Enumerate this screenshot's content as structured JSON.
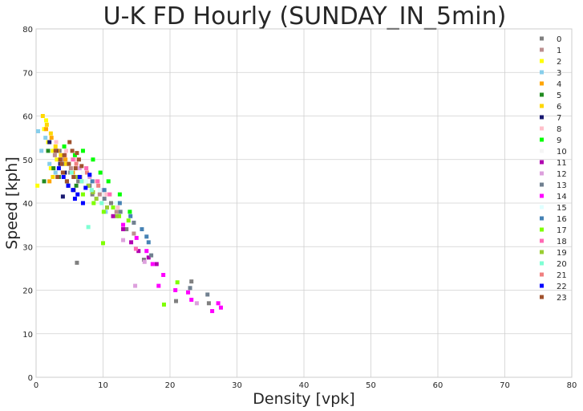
{
  "chart_data": {
    "type": "scatter",
    "title": "U-K FD Hourly (SUNDAY_IN_5min)",
    "xlabel": "Density [vpk]",
    "ylabel": "Speed [kph]",
    "xlim": [
      0,
      80
    ],
    "ylim": [
      0,
      80
    ],
    "xticks": [
      "0",
      "10",
      "20",
      "30",
      "40",
      "50",
      "60",
      "70",
      "80"
    ],
    "yticks": [
      "0",
      "10",
      "20",
      "30",
      "40",
      "50",
      "60",
      "70",
      "80"
    ],
    "grid": true,
    "legend_position": "right",
    "series": [
      {
        "name": "0",
        "color": "#808080",
        "points": [
          [
            3.5,
            52
          ],
          [
            4.2,
            49
          ],
          [
            5.1,
            47
          ],
          [
            6.3,
            45
          ],
          [
            8.4,
            42
          ],
          [
            11.2,
            40
          ],
          [
            13.5,
            34
          ],
          [
            16.1,
            27
          ],
          [
            20.9,
            17.5
          ],
          [
            23.2,
            22
          ],
          [
            25.8,
            17
          ],
          [
            6.1,
            26.3
          ]
        ]
      },
      {
        "name": "1",
        "color": "#bc8f8f",
        "points": [
          [
            2.8,
            51
          ],
          [
            3.9,
            50
          ],
          [
            5.2,
            48
          ],
          [
            6.6,
            46
          ],
          [
            7.9,
            44
          ],
          [
            9.5,
            42
          ],
          [
            12.0,
            38
          ],
          [
            14.6,
            33
          ]
        ]
      },
      {
        "name": "2",
        "color": "#ffff00",
        "points": [
          [
            0.2,
            44
          ],
          [
            1.2,
            57
          ],
          [
            1.8,
            54
          ],
          [
            2.5,
            52
          ],
          [
            3.1,
            50
          ],
          [
            2.2,
            48
          ],
          [
            4.0,
            47
          ],
          [
            1.5,
            59
          ]
        ]
      },
      {
        "name": "3",
        "color": "#87ceeb",
        "points": [
          [
            0.3,
            56.5
          ],
          [
            0.8,
            52
          ],
          [
            1.4,
            55
          ],
          [
            2.0,
            49
          ],
          [
            2.9,
            47
          ],
          [
            9.0,
            41
          ],
          [
            10.4,
            38
          ]
        ]
      },
      {
        "name": "4",
        "color": "#ffa500",
        "points": [
          [
            1.5,
            57
          ],
          [
            2.3,
            55
          ],
          [
            3.2,
            52
          ],
          [
            4.4,
            50
          ],
          [
            5.5,
            47
          ],
          [
            6.8,
            45
          ],
          [
            2.0,
            45
          ]
        ]
      },
      {
        "name": "5",
        "color": "#228b22",
        "points": [
          [
            1.8,
            52
          ],
          [
            2.6,
            48
          ],
          [
            3.4,
            46
          ],
          [
            4.6,
            45
          ],
          [
            1.2,
            45
          ],
          [
            6.0,
            44
          ]
        ]
      },
      {
        "name": "6",
        "color": "#ffd700",
        "points": [
          [
            1.0,
            60
          ],
          [
            1.6,
            58
          ],
          [
            2.2,
            56
          ],
          [
            2.9,
            53
          ],
          [
            3.7,
            51
          ],
          [
            4.5,
            49
          ],
          [
            2.5,
            46
          ]
        ]
      },
      {
        "name": "7",
        "color": "#191970",
        "points": [
          [
            2.0,
            54
          ],
          [
            3.0,
            52
          ],
          [
            3.6,
            49
          ],
          [
            4.3,
            47
          ],
          [
            4.8,
            44
          ],
          [
            5.6,
            43
          ],
          [
            4.0,
            41.5
          ]
        ]
      },
      {
        "name": "8",
        "color": "#ffc0cb",
        "points": [
          [
            3.0,
            54
          ],
          [
            4.5,
            52
          ],
          [
            6.0,
            50
          ],
          [
            7.5,
            48
          ],
          [
            9.0,
            45
          ],
          [
            10.5,
            42
          ],
          [
            12.2,
            39
          ]
        ]
      },
      {
        "name": "9",
        "color": "#00ff00",
        "points": [
          [
            4.2,
            53
          ],
          [
            5.8,
            51
          ],
          [
            7.0,
            52
          ],
          [
            8.5,
            50
          ],
          [
            9.6,
            47
          ],
          [
            10.8,
            45
          ],
          [
            12.5,
            42
          ],
          [
            14.0,
            38
          ]
        ]
      },
      {
        "name": "10",
        "color": "#f5f5f5",
        "points": [
          [
            5.0,
            50
          ],
          [
            7.0,
            47
          ],
          [
            9.0,
            44
          ]
        ]
      },
      {
        "name": "11",
        "color": "#b000b0",
        "points": [
          [
            11.5,
            37
          ],
          [
            13.0,
            34
          ],
          [
            14.2,
            31
          ],
          [
            15.3,
            29
          ],
          [
            16.8,
            27.5
          ],
          [
            18.0,
            26
          ]
        ]
      },
      {
        "name": "12",
        "color": "#dda0dd",
        "points": [
          [
            6.5,
            48
          ],
          [
            8.0,
            46
          ],
          [
            10.0,
            43
          ],
          [
            13.0,
            31.5
          ],
          [
            14.8,
            21
          ],
          [
            16.2,
            26.5
          ],
          [
            24.0,
            17
          ]
        ]
      },
      {
        "name": "13",
        "color": "#708090",
        "points": [
          [
            8.0,
            44
          ],
          [
            10.2,
            41
          ],
          [
            12.6,
            38
          ],
          [
            14.6,
            35.5
          ],
          [
            17.2,
            28
          ],
          [
            23.0,
            20.5
          ],
          [
            25.6,
            19
          ]
        ]
      },
      {
        "name": "14",
        "color": "#ff00ff",
        "points": [
          [
            13.0,
            35
          ],
          [
            15.0,
            32
          ],
          [
            16.5,
            29
          ],
          [
            17.4,
            26
          ],
          [
            18.3,
            21
          ],
          [
            19.0,
            23.5
          ],
          [
            20.8,
            20
          ],
          [
            22.7,
            19.5
          ],
          [
            23.2,
            17.8
          ],
          [
            26.3,
            15.2
          ],
          [
            27.2,
            17
          ],
          [
            27.6,
            16
          ]
        ]
      },
      {
        "name": "15",
        "color": "#e0ffff",
        "points": [
          [
            7.5,
            45
          ],
          [
            9.5,
            43
          ],
          [
            12.0,
            40
          ]
        ]
      },
      {
        "name": "16",
        "color": "#4682b4",
        "points": [
          [
            8.4,
            45
          ],
          [
            10.2,
            43
          ],
          [
            12.5,
            40
          ],
          [
            14.1,
            37
          ],
          [
            15.8,
            34
          ],
          [
            16.8,
            31
          ],
          [
            16.5,
            32.3
          ]
        ]
      },
      {
        "name": "17",
        "color": "#7fff00",
        "points": [
          [
            7.0,
            42
          ],
          [
            8.6,
            40
          ],
          [
            10.1,
            38
          ],
          [
            11.5,
            39
          ],
          [
            12.4,
            37
          ],
          [
            13.8,
            36
          ],
          [
            10.0,
            30.8
          ],
          [
            19.1,
            16.7
          ],
          [
            21.1,
            21.8
          ]
        ]
      },
      {
        "name": "18",
        "color": "#ff69b4",
        "points": [
          [
            5.5,
            50
          ],
          [
            7.5,
            48
          ],
          [
            9.2,
            45
          ],
          [
            11.0,
            42
          ],
          [
            14.9,
            29.5
          ]
        ]
      },
      {
        "name": "19",
        "color": "#9acd32",
        "points": [
          [
            6.0,
            46
          ],
          [
            7.8,
            44
          ],
          [
            9.0,
            41
          ],
          [
            10.6,
            39
          ],
          [
            12.1,
            37
          ],
          [
            8.5,
            42.5
          ]
        ]
      },
      {
        "name": "20",
        "color": "#7fffd4",
        "points": [
          [
            5.3,
            47
          ],
          [
            6.8,
            45
          ],
          [
            8.3,
            43
          ],
          [
            9.8,
            40
          ],
          [
            7.8,
            34.5
          ]
        ]
      },
      {
        "name": "21",
        "color": "#f08080",
        "points": [
          [
            4.3,
            51
          ],
          [
            6.0,
            49
          ],
          [
            7.6,
            47
          ],
          [
            9.3,
            44
          ]
        ]
      },
      {
        "name": "22",
        "color": "#0000ff",
        "points": [
          [
            3.4,
            48
          ],
          [
            4.1,
            46
          ],
          [
            4.8,
            44
          ],
          [
            5.5,
            43
          ],
          [
            6.2,
            42
          ],
          [
            7.0,
            40
          ],
          [
            5.8,
            41
          ],
          [
            6.5,
            46
          ],
          [
            7.4,
            43.5
          ],
          [
            8.0,
            46.5
          ]
        ]
      },
      {
        "name": "23",
        "color": "#a0522d",
        "points": [
          [
            2.9,
            52
          ],
          [
            3.6,
            50
          ],
          [
            4.2,
            51
          ],
          [
            4.9,
            49
          ],
          [
            5.4,
            52
          ],
          [
            5.9,
            48
          ],
          [
            6.4,
            50
          ],
          [
            4.0,
            47
          ],
          [
            3.2,
            46
          ],
          [
            5.0,
            54
          ],
          [
            4.6,
            45
          ],
          [
            6.1,
            51.5
          ],
          [
            3.8,
            49
          ],
          [
            5.6,
            46
          ],
          [
            6.8,
            48.5
          ]
        ]
      }
    ]
  }
}
